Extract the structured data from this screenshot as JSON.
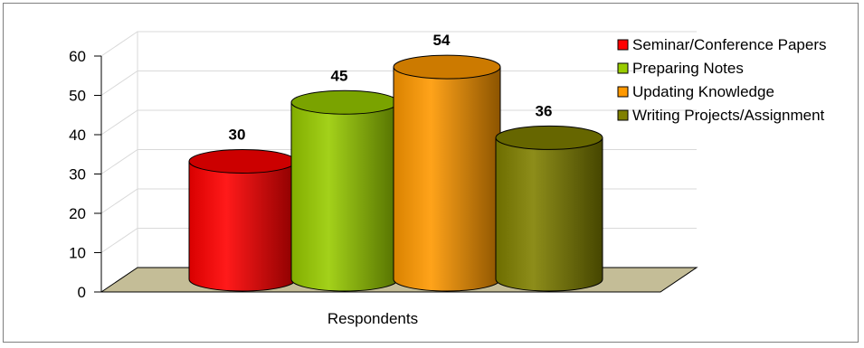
{
  "chart_data": {
    "type": "bar",
    "style": "3d-cylinder",
    "categories": [
      "Respondents"
    ],
    "series": [
      {
        "name": "Seminar/Conference Papers",
        "values": [
          30
        ],
        "color": "#ff0000"
      },
      {
        "name": "Preparing Notes",
        "values": [
          45
        ],
        "color": "#99cc00"
      },
      {
        "name": "Updating Knowledge",
        "values": [
          54
        ],
        "color": "#ff9900"
      },
      {
        "name": "Writing Projects/Assignment",
        "values": [
          36
        ],
        "color": "#808000"
      }
    ],
    "y_ticks": [
      "0",
      "10",
      "20",
      "30",
      "40",
      "50",
      "60"
    ],
    "xlabel": "Respondents",
    "ylim": [
      0,
      60
    ],
    "grid": true,
    "legend": "right",
    "floor_color": "#c4bd97"
  }
}
